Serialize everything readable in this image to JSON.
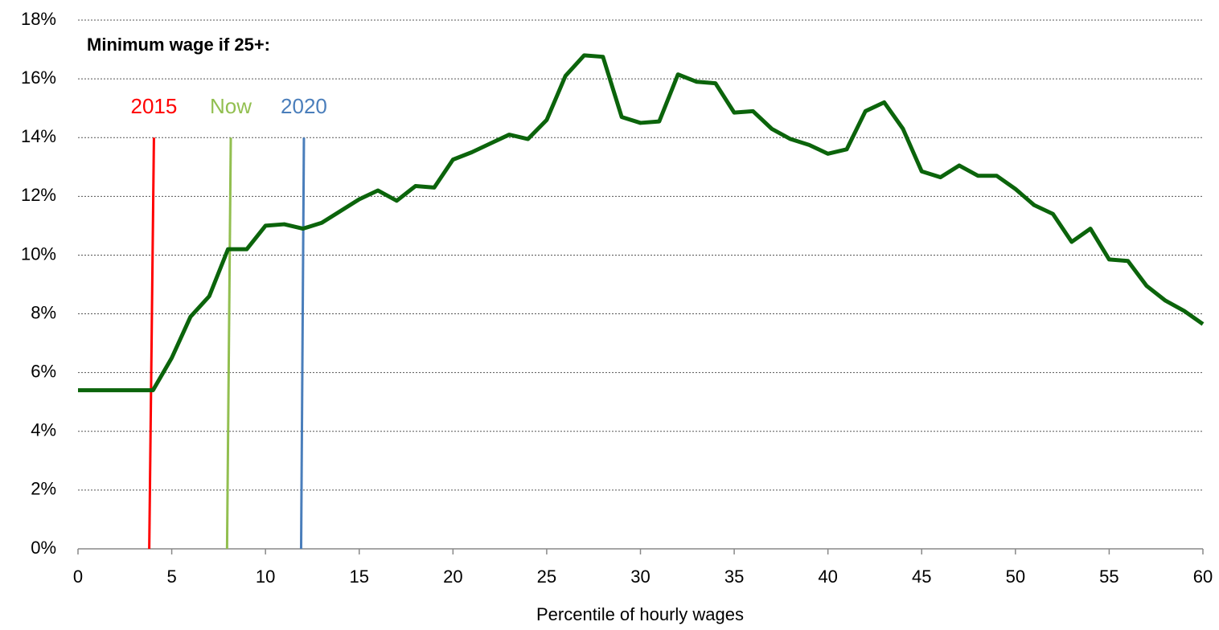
{
  "chart_data": {
    "type": "line",
    "annotation": "Minimum wage if 25+:",
    "x_label": "Percentile of hourly wages",
    "x": [
      0,
      1,
      2,
      3,
      4,
      5,
      6,
      7,
      8,
      9,
      10,
      11,
      12,
      13,
      14,
      15,
      16,
      17,
      18,
      19,
      20,
      21,
      22,
      23,
      24,
      25,
      26,
      27,
      28,
      29,
      30,
      31,
      32,
      33,
      34,
      35,
      36,
      37,
      38,
      39,
      40,
      41,
      42,
      43,
      44,
      45,
      46,
      47,
      48,
      49,
      50,
      51,
      52,
      53,
      54,
      55,
      56,
      57,
      58,
      59,
      60
    ],
    "series": [
      {
        "color": "#0b640b",
        "values": [
          5.4,
          5.4,
          5.4,
          5.4,
          5.4,
          6.5,
          7.9,
          8.6,
          10.2,
          10.2,
          11.0,
          11.05,
          10.9,
          11.1,
          11.5,
          11.9,
          12.2,
          11.85,
          12.35,
          12.3,
          13.25,
          13.5,
          13.8,
          14.1,
          13.95,
          14.6,
          16.1,
          16.8,
          16.75,
          14.7,
          14.5,
          14.55,
          16.15,
          15.9,
          15.85,
          14.85,
          14.9,
          14.3,
          13.95,
          13.75,
          13.45,
          13.6,
          14.9,
          15.2,
          14.3,
          12.85,
          12.65,
          13.05,
          12.7,
          12.7,
          12.25,
          11.7,
          11.4,
          10.45,
          10.9,
          9.85,
          9.8,
          8.95,
          8.45,
          8.1,
          7.65
        ]
      }
    ],
    "markers": [
      {
        "label": "2015",
        "color": "#ff0000",
        "x": [
          3.8,
          4.05
        ],
        "y": [
          0,
          14
        ]
      },
      {
        "label": "Now",
        "color": "#92bf50",
        "x": [
          7.95,
          8.15
        ],
        "y": [
          0,
          14
        ]
      },
      {
        "label": "2020",
        "color": "#4a7ebb",
        "x": [
          11.9,
          12.05
        ],
        "y": [
          0,
          14
        ]
      }
    ],
    "xlim": [
      0,
      60
    ],
    "xticks": [
      0,
      5,
      10,
      15,
      20,
      25,
      30,
      35,
      40,
      45,
      50,
      55,
      60
    ],
    "ylim": [
      0,
      18
    ],
    "yticks": [
      {
        "value": 0,
        "label": "0%"
      },
      {
        "value": 2,
        "label": "2%"
      },
      {
        "value": 4,
        "label": "4%"
      },
      {
        "value": 6,
        "label": "6%"
      },
      {
        "value": 8,
        "label": "8%"
      },
      {
        "value": 10,
        "label": "10%"
      },
      {
        "value": 12,
        "label": "12%"
      },
      {
        "value": 14,
        "label": "14%"
      },
      {
        "value": 16,
        "label": "16%"
      },
      {
        "value": 18,
        "label": "18%"
      }
    ],
    "grid": true
  }
}
